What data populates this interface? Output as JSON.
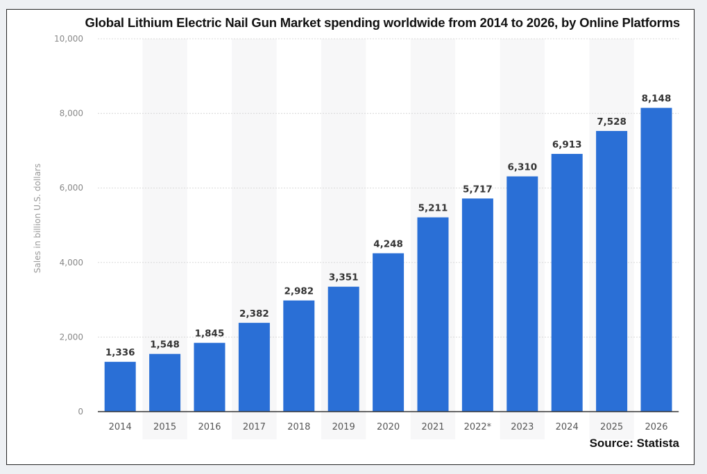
{
  "chart_data": {
    "type": "bar",
    "title": "Global Lithium Electric Nail Gun Market spending worldwide from 2014 to 2026, by Online Platforms",
    "xlabel": "",
    "ylabel": "Sales in billion U.S. dollars",
    "ylim": [
      0,
      10000
    ],
    "yticks": [
      0,
      2000,
      4000,
      6000,
      8000,
      10000
    ],
    "ytick_labels": [
      "0",
      "2,000",
      "4,000",
      "6,000",
      "8,000",
      "10,000"
    ],
    "categories": [
      "2014",
      "2015",
      "2016",
      "2017",
      "2018",
      "2019",
      "2020",
      "2021",
      "2022*",
      "2023",
      "2024",
      "2025",
      "2026"
    ],
    "values": [
      1336,
      1548,
      1845,
      2382,
      2982,
      3351,
      4248,
      5211,
      5717,
      6310,
      6913,
      7528,
      8148
    ],
    "value_labels": [
      "1,336",
      "1,548",
      "1,845",
      "2,382",
      "2,982",
      "3,351",
      "4,248",
      "5,211",
      "5,717",
      "6,310",
      "6,913",
      "7,528",
      "8,148"
    ],
    "bar_color": "#2a6fd6",
    "grid": true,
    "source": "Source: Statista"
  }
}
